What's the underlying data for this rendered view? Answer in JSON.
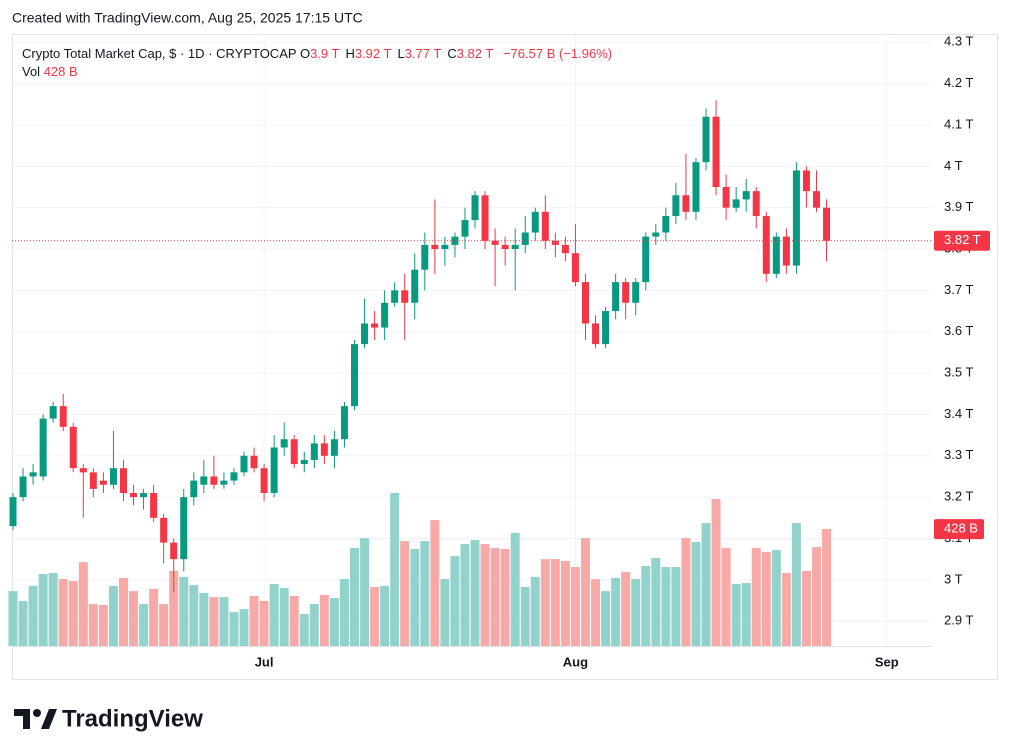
{
  "watermark": "Created with TradingView.com, Aug 25, 2025 17:15 UTC",
  "brand": "TradingView",
  "chart_data": {
    "type": "candlestick",
    "header": {
      "symbol": "Crypto Total Market Cap, $ · 1D · CRYPTOCAP",
      "ohlc": [
        {
          "key": "O",
          "value": "3.9 T"
        },
        {
          "key": "H",
          "value": "3.92 T"
        },
        {
          "key": "L",
          "value": "3.77 T"
        },
        {
          "key": "C",
          "value": "3.82 T"
        }
      ],
      "change": "−76.57 B (−1.96%)",
      "volume_key": "Vol"
    },
    "open": [
      3.13,
      3.2,
      3.25,
      3.25,
      3.39,
      3.42,
      3.37,
      3.27,
      3.26,
      3.24,
      3.23,
      3.27,
      3.21,
      3.2,
      3.21,
      3.15,
      3.09,
      3.05,
      3.2,
      3.23,
      3.25,
      3.23,
      3.24,
      3.26,
      3.3,
      3.27,
      3.21,
      3.32,
      3.34,
      3.28,
      3.29,
      3.33,
      3.3,
      3.34,
      3.42,
      3.57,
      3.62,
      3.61,
      3.67,
      3.7,
      3.67,
      3.75,
      3.81,
      3.8,
      3.81,
      3.83,
      3.87,
      3.93,
      3.82,
      3.81,
      3.8,
      3.81,
      3.84,
      3.89,
      3.82,
      3.81,
      3.79,
      3.72,
      3.62,
      3.57,
      3.65,
      3.72,
      3.67,
      3.72,
      3.83,
      3.84,
      3.88,
      3.93,
      3.89,
      4.01,
      4.12,
      3.95,
      3.9,
      3.92,
      3.94,
      3.88,
      3.74,
      3.83,
      3.76,
      3.99,
      3.94,
      3.9
    ],
    "high": [
      3.21,
      3.27,
      3.28,
      3.4,
      3.43,
      3.45,
      3.38,
      3.28,
      3.27,
      3.26,
      3.36,
      3.29,
      3.23,
      3.22,
      3.23,
      3.16,
      3.1,
      3.22,
      3.26,
      3.29,
      3.3,
      3.26,
      3.27,
      3.31,
      3.32,
      3.28,
      3.35,
      3.38,
      3.35,
      3.31,
      3.35,
      3.35,
      3.36,
      3.43,
      3.58,
      3.68,
      3.65,
      3.7,
      3.72,
      3.74,
      3.79,
      3.84,
      3.92,
      3.83,
      3.84,
      3.9,
      3.94,
      3.94,
      3.85,
      3.83,
      3.85,
      3.88,
      3.9,
      3.93,
      3.84,
      3.83,
      3.86,
      3.74,
      3.64,
      3.66,
      3.74,
      3.73,
      3.73,
      3.84,
      3.86,
      3.9,
      3.96,
      4.03,
      4.02,
      4.14,
      4.16,
      3.98,
      3.95,
      3.97,
      3.95,
      3.89,
      3.84,
      3.85,
      4.01,
      4.0,
      3.99,
      3.92
    ],
    "low": [
      3.12,
      3.19,
      3.23,
      3.24,
      3.38,
      3.36,
      3.26,
      3.15,
      3.2,
      3.21,
      3.22,
      3.19,
      3.18,
      3.17,
      3.14,
      3.04,
      2.97,
      3.02,
      3.18,
      3.21,
      3.22,
      3.22,
      3.23,
      3.25,
      3.26,
      3.19,
      3.2,
      3.3,
      3.27,
      3.26,
      3.27,
      3.28,
      3.27,
      3.32,
      3.41,
      3.56,
      3.58,
      3.58,
      3.66,
      3.58,
      3.63,
      3.7,
      3.74,
      3.76,
      3.78,
      3.8,
      3.85,
      3.8,
      3.71,
      3.76,
      3.7,
      3.79,
      3.82,
      3.8,
      3.78,
      3.77,
      3.71,
      3.58,
      3.56,
      3.56,
      3.63,
      3.63,
      3.64,
      3.7,
      3.81,
      3.82,
      3.86,
      3.87,
      3.87,
      3.99,
      3.93,
      3.87,
      3.89,
      3.89,
      3.85,
      3.72,
      3.73,
      3.74,
      3.74,
      3.9,
      3.89,
      3.77
    ],
    "close": [
      3.2,
      3.25,
      3.26,
      3.39,
      3.42,
      3.37,
      3.27,
      3.26,
      3.22,
      3.23,
      3.27,
      3.21,
      3.2,
      3.21,
      3.15,
      3.09,
      3.05,
      3.2,
      3.24,
      3.25,
      3.23,
      3.24,
      3.26,
      3.3,
      3.27,
      3.21,
      3.32,
      3.34,
      3.28,
      3.29,
      3.33,
      3.3,
      3.34,
      3.42,
      3.57,
      3.62,
      3.61,
      3.67,
      3.7,
      3.67,
      3.75,
      3.81,
      3.8,
      3.81,
      3.83,
      3.87,
      3.93,
      3.82,
      3.81,
      3.8,
      3.81,
      3.84,
      3.89,
      3.82,
      3.81,
      3.79,
      3.72,
      3.62,
      3.57,
      3.65,
      3.72,
      3.67,
      3.72,
      3.83,
      3.84,
      3.88,
      3.93,
      3.89,
      4.01,
      4.12,
      3.95,
      3.9,
      3.92,
      3.94,
      3.88,
      3.74,
      3.83,
      3.76,
      3.99,
      3.94,
      3.9,
      3.82
    ],
    "volume": [
      201,
      165,
      220,
      264,
      267,
      245,
      238,
      307,
      154,
      150,
      220,
      249,
      201,
      154,
      209,
      154,
      275,
      253,
      223,
      194,
      179,
      179,
      124,
      135,
      183,
      165,
      227,
      212,
      183,
      117,
      154,
      187,
      176,
      245,
      359,
      395,
      216,
      220,
      560,
      384,
      355,
      384,
      461,
      245,
      329,
      373,
      388,
      373,
      359,
      355,
      414,
      216,
      253,
      318,
      318,
      311,
      289,
      395,
      245,
      201,
      249,
      271,
      245,
      293,
      322,
      289,
      289,
      395,
      381,
      450,
      538,
      359,
      227,
      231,
      359,
      344,
      351,
      267,
      450,
      275,
      362,
      428
    ],
    "last_volume_label": "428 B",
    "last_price": {
      "value": 3.82,
      "label": "3.82 T"
    },
    "up_color": "#089981",
    "down_color": "#f23645",
    "volume_up_color": "#92d2cc",
    "volume_down_color": "#f7a9a7",
    "xlim": [
      -0.1,
      91.5
    ],
    "xticks": [
      {
        "value": 25,
        "label": "Jul"
      },
      {
        "value": 56,
        "label": "Aug"
      },
      {
        "value": 87,
        "label": "Sep"
      }
    ],
    "ylim": [
      2.84,
      4.32
    ],
    "yticks": [
      {
        "value": 4.3,
        "label": "4.3 T"
      },
      {
        "value": 4.2,
        "label": "4.2 T"
      },
      {
        "value": 4.1,
        "label": "4.1 T"
      },
      {
        "value": 4.0,
        "label": "4 T"
      },
      {
        "value": 3.9,
        "label": "3.9 T"
      },
      {
        "value": 3.8,
        "label": "3.8 T"
      },
      {
        "value": 3.7,
        "label": "3.7 T"
      },
      {
        "value": 3.6,
        "label": "3.6 T"
      },
      {
        "value": 3.5,
        "label": "3.5 T"
      },
      {
        "value": 3.4,
        "label": "3.4 T"
      },
      {
        "value": 3.3,
        "label": "3.3 T"
      },
      {
        "value": 3.2,
        "label": "3.2 T"
      },
      {
        "value": 3.1,
        "label": "3.1 T"
      },
      {
        "value": 3.0,
        "label": "3 T"
      },
      {
        "value": 2.9,
        "label": "2.9 T"
      }
    ],
    "grid": true
  }
}
